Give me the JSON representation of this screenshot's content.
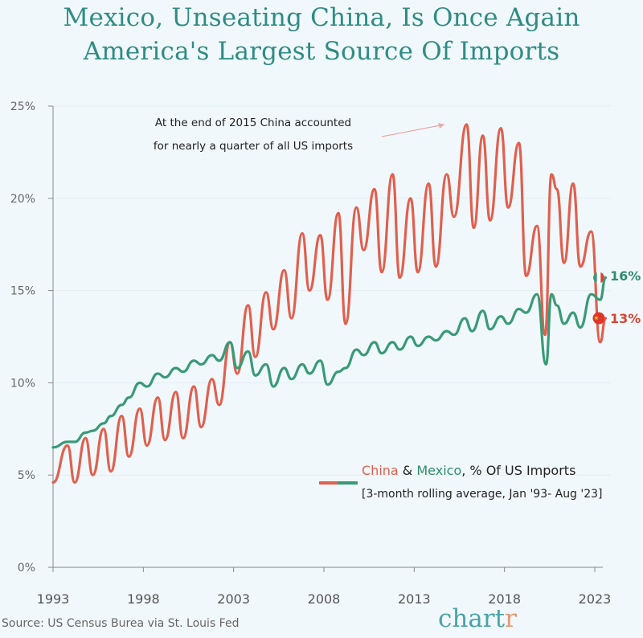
{
  "title_line1": "Mexico, Unseating China, Is Once Again",
  "title_line2": "America's Largest Source Of Imports",
  "annotation": {
    "line1": "At the end of 2015 China accounted",
    "line2": "for nearly a quarter of all US imports"
  },
  "legend": {
    "china": "China",
    "amp": " & ",
    "mexico": "Mexico",
    "rest": ", % Of US Imports",
    "subtitle": "[3-month rolling average, Jan '93- Aug '23]"
  },
  "end_labels": {
    "mexico": "16%",
    "china": "13%"
  },
  "source": "Source: US Census Burea via St. Louis Fed",
  "logo": {
    "main": "chart",
    "accent": "r"
  },
  "colors": {
    "china": "#e0604f",
    "mexico": "#3a9a78",
    "title": "#2f8c84",
    "background": "#f1f8fb"
  },
  "chart_data": {
    "type": "line",
    "xlim": [
      1993,
      2023.7
    ],
    "ylim": [
      0,
      25
    ],
    "yticks": [
      0,
      5,
      10,
      15,
      20,
      25
    ],
    "ytick_labels": [
      "0%",
      "5%",
      "10%",
      "15%",
      "20%",
      "25%"
    ],
    "xticks": [
      1993,
      1998,
      2003,
      2008,
      2013,
      2018,
      2023
    ],
    "xtick_labels": [
      "1993",
      "1998",
      "2003",
      "2008",
      "2013",
      "2018",
      "2023"
    ],
    "grid": "horizontal",
    "legend_position": "bottom-right",
    "series": [
      {
        "name": "China",
        "x_years": [
          1993,
          1993.8,
          1994.2,
          1994.8,
          1995.2,
          1995.8,
          1996.2,
          1996.8,
          1997.2,
          1997.8,
          1998.2,
          1998.8,
          1999.2,
          1999.8,
          2000.2,
          2000.8,
          2001.2,
          2001.8,
          2002.2,
          2002.8,
          2003.2,
          2003.8,
          2004.2,
          2004.8,
          2005.2,
          2005.8,
          2006.2,
          2006.8,
          2007.2,
          2007.8,
          2008.2,
          2008.8,
          2009.2,
          2009.8,
          2010.2,
          2010.8,
          2011.2,
          2011.8,
          2012.2,
          2012.8,
          2013.2,
          2013.8,
          2014.2,
          2014.8,
          2015.2,
          2015.9,
          2016.3,
          2016.8,
          2017.2,
          2017.8,
          2018.2,
          2018.8,
          2019.2,
          2019.8,
          2020.25,
          2020.6,
          2020.9,
          2021.3,
          2021.8,
          2022.2,
          2022.8,
          2023.3,
          2023.6
        ],
        "values": [
          4.6,
          6.6,
          4.6,
          7.0,
          5.0,
          7.5,
          5.2,
          8.2,
          6.0,
          8.6,
          6.6,
          9.2,
          6.9,
          9.5,
          7.0,
          9.8,
          7.6,
          10.2,
          8.8,
          12.2,
          10.5,
          14.2,
          11.4,
          14.9,
          12.9,
          16.1,
          13.5,
          18.1,
          15.0,
          18.0,
          14.5,
          19.2,
          13.2,
          19.5,
          17.2,
          20.5,
          16.0,
          21.3,
          15.7,
          20.0,
          16.0,
          20.8,
          16.3,
          21.3,
          19.0,
          24.0,
          18.4,
          23.4,
          18.8,
          23.8,
          19.5,
          23.0,
          15.8,
          18.5,
          12.6,
          21.3,
          20.5,
          16.5,
          20.8,
          16.3,
          18.2,
          12.2,
          13.5
        ]
      },
      {
        "name": "Mexico",
        "x_years": [
          1993,
          1993.8,
          1994.2,
          1994.8,
          1995.2,
          1995.8,
          1996.2,
          1996.8,
          1997.2,
          1997.8,
          1998.2,
          1998.8,
          1999.2,
          1999.8,
          2000.2,
          2000.8,
          2001.2,
          2001.8,
          2002.2,
          2002.8,
          2003.2,
          2003.8,
          2004.2,
          2004.8,
          2005.2,
          2005.8,
          2006.2,
          2006.8,
          2007.2,
          2007.8,
          2008.2,
          2008.8,
          2009.2,
          2009.8,
          2010.2,
          2010.8,
          2011.2,
          2011.8,
          2012.2,
          2012.8,
          2013.2,
          2013.8,
          2014.2,
          2014.8,
          2015.2,
          2015.8,
          2016.2,
          2016.8,
          2017.2,
          2017.8,
          2018.2,
          2018.8,
          2019.2,
          2019.8,
          2020.3,
          2020.6,
          2020.9,
          2021.3,
          2021.8,
          2022.2,
          2022.8,
          2023.3,
          2023.6
        ],
        "values": [
          6.5,
          6.8,
          6.8,
          7.3,
          7.4,
          7.8,
          8.2,
          8.8,
          9.2,
          10.0,
          9.8,
          10.5,
          10.3,
          10.8,
          10.6,
          11.2,
          11.0,
          11.5,
          11.2,
          12.2,
          10.8,
          11.7,
          10.4,
          11.0,
          9.8,
          10.8,
          10.2,
          11.0,
          10.5,
          11.2,
          9.9,
          10.6,
          10.8,
          11.8,
          11.5,
          12.2,
          11.6,
          12.2,
          11.8,
          12.5,
          12.0,
          12.5,
          12.3,
          12.8,
          12.6,
          13.5,
          12.8,
          13.9,
          12.9,
          13.6,
          13.2,
          14.0,
          13.8,
          14.8,
          11.0,
          14.8,
          14.2,
          13.2,
          13.8,
          13.0,
          14.8,
          14.5,
          15.7
        ]
      }
    ]
  }
}
